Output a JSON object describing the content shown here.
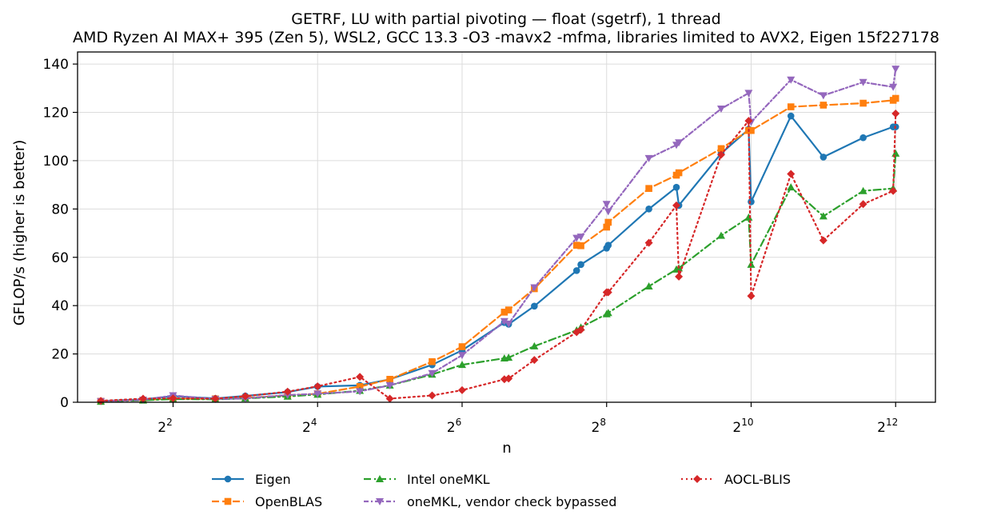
{
  "chart_data": {
    "type": "line",
    "title": "GETRF, LU with partial pivoting — float (sgetrf), 1 thread",
    "subtitle": "AMD Ryzen AI MAX+ 395 (Zen 5), WSL2, GCC 13.3 -O3 -mavx2 -mfma, libraries limited to AVX2, Eigen 15f227178",
    "xlabel": "n",
    "ylabel": "GFLOP/s (higher is better)",
    "x_scale": "log2",
    "xlim": [
      1.6,
      6000
    ],
    "ylim": [
      0,
      145
    ],
    "x_ticks": [
      {
        "value": 4,
        "base": "2",
        "exp": "2"
      },
      {
        "value": 16,
        "base": "2",
        "exp": "4"
      },
      {
        "value": 64,
        "base": "2",
        "exp": "6"
      },
      {
        "value": 256,
        "base": "2",
        "exp": "8"
      },
      {
        "value": 1024,
        "base": "2",
        "exp": "10"
      },
      {
        "value": 4096,
        "base": "2",
        "exp": "12"
      }
    ],
    "y_ticks": [
      0,
      20,
      40,
      60,
      80,
      100,
      120,
      140
    ],
    "grid": true,
    "legend_position": "below",
    "series": [
      {
        "name": "Eigen",
        "color": "#1f77b4",
        "dash": "solid",
        "marker": "circle",
        "x": [
          2,
          3,
          4,
          6,
          8,
          12,
          16,
          24,
          32,
          48,
          64,
          96,
          100,
          128,
          192,
          200,
          256,
          260,
          384,
          500,
          512,
          768,
          1000,
          1024,
          1500,
          2048,
          3000,
          4000,
          4096
        ],
        "y": [
          0.5,
          1.2,
          2.5,
          1.6,
          2.6,
          4.2,
          6.5,
          7.0,
          9.5,
          15.5,
          21.5,
          33.0,
          32.3,
          39.8,
          54.5,
          57.0,
          63.8,
          65.0,
          80.0,
          89.0,
          81.5,
          103.0,
          113.0,
          83.0,
          118.5,
          101.5,
          109.5,
          114.0,
          114.0
        ]
      },
      {
        "name": "OpenBLAS",
        "color": "#ff7f0e",
        "dash": "dashed",
        "marker": "square",
        "x": [
          2,
          3,
          4,
          6,
          8,
          12,
          16,
          24,
          32,
          48,
          64,
          96,
          100,
          128,
          192,
          200,
          256,
          260,
          384,
          500,
          512,
          768,
          1000,
          1024,
          1500,
          2048,
          3000,
          4000,
          4096
        ],
        "y": [
          0.4,
          0.9,
          1.5,
          1.4,
          1.8,
          2.8,
          3.5,
          6.5,
          9.5,
          16.8,
          23.0,
          37.3,
          38.2,
          47.0,
          65.0,
          64.8,
          72.5,
          74.5,
          88.5,
          94.0,
          95.0,
          105.0,
          112.5,
          112.5,
          122.3,
          123.0,
          123.8,
          125.0,
          125.8
        ]
      },
      {
        "name": "Intel oneMKL",
        "color": "#2ca02c",
        "dash": "dashdot",
        "marker": "triangle-up",
        "x": [
          2,
          3,
          4,
          6,
          8,
          12,
          16,
          24,
          32,
          48,
          64,
          96,
          100,
          128,
          192,
          200,
          256,
          260,
          384,
          500,
          512,
          768,
          1000,
          1024,
          1500,
          2048,
          3000,
          4000,
          4096
        ],
        "y": [
          0.3,
          0.8,
          1.3,
          1.2,
          1.6,
          2.4,
          3.2,
          4.8,
          7.0,
          11.5,
          15.5,
          18.2,
          18.5,
          23.2,
          29.8,
          31.0,
          36.5,
          37.0,
          48.0,
          55.0,
          55.5,
          69.0,
          76.5,
          57.0,
          89.0,
          77.0,
          87.5,
          88.5,
          103.0
        ]
      },
      {
        "name": "oneMKL, vendor check bypassed",
        "color": "#9467bd",
        "dash": "dashdot-fine",
        "marker": "triangle-down",
        "x": [
          2,
          3,
          4,
          6,
          8,
          12,
          16,
          24,
          32,
          48,
          64,
          96,
          100,
          128,
          192,
          200,
          256,
          260,
          384,
          500,
          512,
          768,
          1000,
          1024,
          1500,
          2048,
          3000,
          4000,
          4096
        ],
        "y": [
          0.4,
          1.0,
          2.8,
          1.3,
          1.6,
          3.0,
          3.5,
          4.5,
          7.0,
          12.0,
          19.5,
          33.5,
          32.5,
          47.5,
          68.0,
          68.5,
          82.0,
          79.0,
          101.0,
          106.5,
          107.5,
          121.5,
          128.0,
          116.0,
          133.5,
          127.0,
          132.5,
          130.5,
          138.0
        ]
      },
      {
        "name": "AOCL-BLIS",
        "color": "#d62728",
        "dash": "dotted",
        "marker": "diamond",
        "x": [
          2,
          3,
          4,
          6,
          8,
          12,
          16,
          24,
          32,
          48,
          64,
          96,
          100,
          128,
          192,
          200,
          256,
          260,
          384,
          500,
          512,
          768,
          1000,
          1024,
          1500,
          2048,
          3000,
          4000,
          4096
        ],
        "y": [
          0.6,
          1.5,
          1.6,
          1.5,
          2.5,
          4.4,
          6.6,
          10.5,
          1.5,
          2.8,
          5.0,
          9.5,
          9.8,
          17.5,
          29.0,
          30.0,
          45.5,
          45.5,
          66.0,
          81.5,
          52.0,
          102.5,
          116.5,
          44.0,
          94.5,
          67.0,
          82.0,
          87.5,
          119.5
        ]
      }
    ]
  }
}
